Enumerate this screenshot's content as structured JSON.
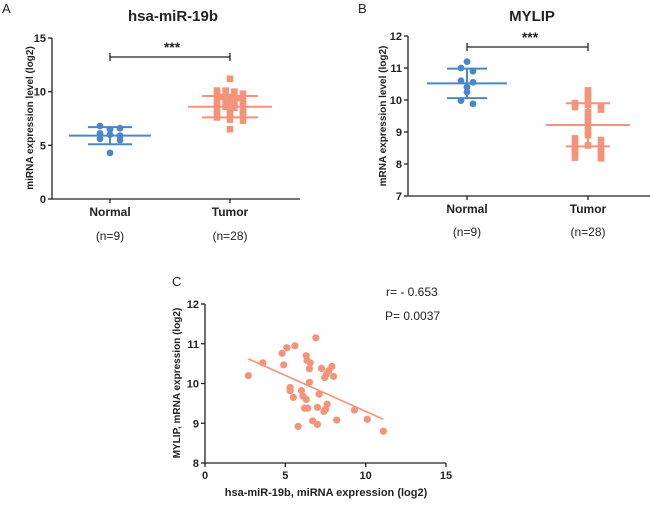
{
  "colors": {
    "normal": "#4a86c8",
    "tumor": "#f4937a",
    "axis": "#222222"
  },
  "chart_data": [
    {
      "panel": "A",
      "type": "scatter",
      "title": "hsa-miR-19b",
      "xlabel": "",
      "ylabel": "miRNA expression level (log2)",
      "ylim": [
        0,
        15
      ],
      "yticks": [
        "0",
        "5",
        "10",
        "15"
      ],
      "categories": [
        "Normal",
        "Tumor"
      ],
      "n_labels": [
        "(n=9)",
        "(n=28)"
      ],
      "significance": "***",
      "series": [
        {
          "name": "Normal",
          "marker": "circle",
          "mean": 5.9,
          "sd_low": 5.1,
          "sd_high": 6.7,
          "values": [
            6.8,
            6.6,
            6.5,
            6.0,
            6.1,
            5.9,
            5.6,
            5.5,
            4.3
          ]
        },
        {
          "name": "Tumor",
          "marker": "square",
          "mean": 8.6,
          "sd_low": 7.6,
          "sd_high": 9.6,
          "values": [
            11.2,
            10.1,
            10.1,
            10.0,
            9.8,
            9.6,
            9.5,
            9.5,
            9.4,
            9.3,
            9.1,
            9.0,
            8.9,
            8.8,
            8.7,
            8.6,
            8.5,
            8.4,
            8.3,
            8.2,
            8.1,
            8.0,
            7.9,
            7.8,
            7.6,
            7.4,
            7.3,
            6.5
          ]
        }
      ]
    },
    {
      "panel": "B",
      "type": "scatter",
      "title": "MYLIP",
      "xlabel": "",
      "ylabel": "mRNA expression level (log2)",
      "ylim": [
        7,
        12
      ],
      "yticks": [
        "7",
        "8",
        "9",
        "10",
        "11",
        "12"
      ],
      "categories": [
        "Normal",
        "Tumor"
      ],
      "n_labels": [
        "(n=9)",
        "(n=28)"
      ],
      "significance": "***",
      "series": [
        {
          "name": "Normal",
          "marker": "circle",
          "mean": 10.52,
          "sd_low": 10.06,
          "sd_high": 10.98,
          "values": [
            11.2,
            11.0,
            10.9,
            10.6,
            10.55,
            10.4,
            10.25,
            9.98,
            9.88
          ]
        },
        {
          "name": "Tumor",
          "marker": "square",
          "mean": 9.22,
          "sd_low": 8.55,
          "sd_high": 9.9,
          "values": [
            10.3,
            10.2,
            10.1,
            10.0,
            9.9,
            9.85,
            9.82,
            9.78,
            9.7,
            9.62,
            9.48,
            9.38,
            9.2,
            9.0,
            8.9,
            8.8,
            8.75,
            8.62,
            8.58,
            8.55,
            8.5,
            8.45,
            8.4,
            8.35,
            8.3,
            8.25,
            8.2,
            8.18
          ]
        }
      ]
    },
    {
      "panel": "C",
      "type": "scatter",
      "title": "",
      "xlabel": "hsa-miR-19b, miRNA expression (log2)",
      "ylabel": "MYLIP, mRNA expression (log2)",
      "xlim": [
        0,
        15
      ],
      "ylim": [
        8,
        12
      ],
      "xticks": [
        "0",
        "5",
        "10",
        "15"
      ],
      "yticks": [
        "8",
        "9",
        "10",
        "11",
        "12"
      ],
      "annotations": [
        "r= - 0.653",
        "P= 0.0037"
      ],
      "regression": {
        "x": [
          2.7,
          11.1
        ],
        "y": [
          10.62,
          9.1
        ]
      },
      "points": [
        [
          2.7,
          10.2
        ],
        [
          3.6,
          10.52
        ],
        [
          4.8,
          10.76
        ],
        [
          4.9,
          10.47
        ],
        [
          5.1,
          10.9
        ],
        [
          5.6,
          10.95
        ],
        [
          6.9,
          11.15
        ],
        [
          6.3,
          10.7
        ],
        [
          6.35,
          10.58
        ],
        [
          6.55,
          10.52
        ],
        [
          6.5,
          10.37
        ],
        [
          6.5,
          10.03
        ],
        [
          5.3,
          9.9
        ],
        [
          5.3,
          9.82
        ],
        [
          5.5,
          9.65
        ],
        [
          6.0,
          9.82
        ],
        [
          6.1,
          9.68
        ],
        [
          6.3,
          9.6
        ],
        [
          6.2,
          9.38
        ],
        [
          6.4,
          9.38
        ],
        [
          5.8,
          8.92
        ],
        [
          6.7,
          9.06
        ],
        [
          7.0,
          8.97
        ],
        [
          7.0,
          9.4
        ],
        [
          7.1,
          9.73
        ],
        [
          7.25,
          10.38
        ],
        [
          7.45,
          10.15
        ],
        [
          7.55,
          10.23
        ],
        [
          7.7,
          10.32
        ],
        [
          7.9,
          10.43
        ],
        [
          8.0,
          10.18
        ],
        [
          7.4,
          9.3
        ],
        [
          7.5,
          9.35
        ],
        [
          7.6,
          9.48
        ],
        [
          8.2,
          9.08
        ],
        [
          9.3,
          9.33
        ],
        [
          10.1,
          9.1
        ],
        [
          11.1,
          8.8
        ]
      ]
    }
  ]
}
